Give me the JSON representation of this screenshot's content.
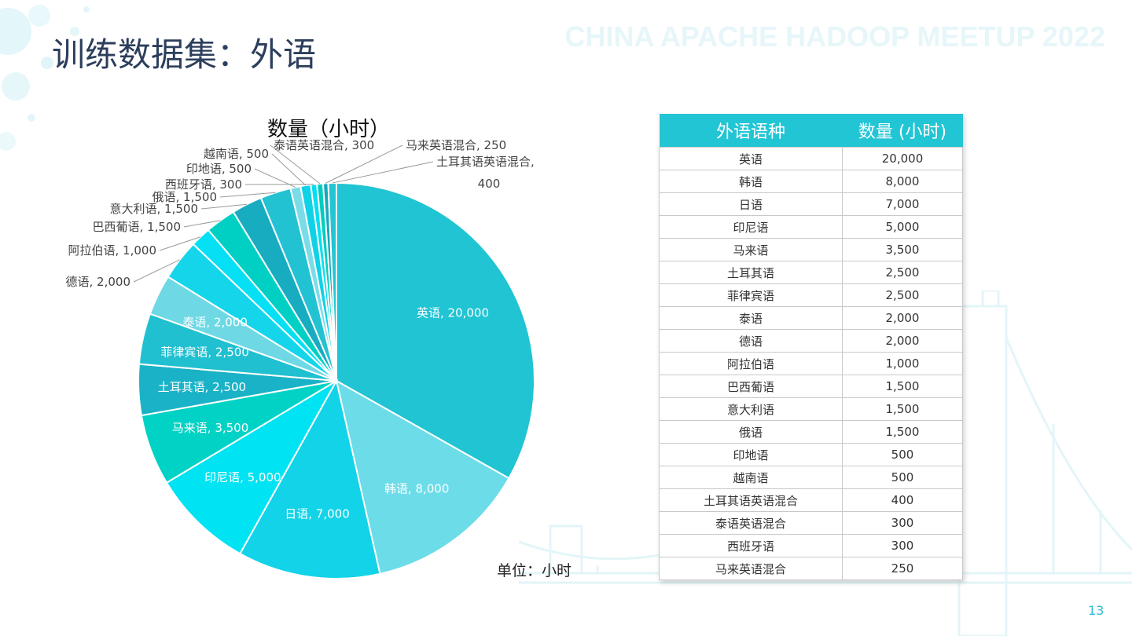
{
  "page": {
    "title": "训练数据集：外语",
    "watermark": "CHINA APACHE HADOOP MEETUP 2022",
    "page_number": "13",
    "unit_note": "单位：小时"
  },
  "colors": {
    "accent": "#22c5d4",
    "title_text": "#2c3e5c",
    "slice_borders": "#ffffff"
  },
  "chart_data": {
    "type": "pie",
    "title": "数量（小时）",
    "start_angle_deg": 0,
    "direction": "clockwise",
    "slices": [
      {
        "label": "英语",
        "value": 20000,
        "display": "英语, 20,000",
        "color": "#20c4d3"
      },
      {
        "label": "韩语",
        "value": 8000,
        "display": "韩语, 8,000",
        "color": "#6cdce8"
      },
      {
        "label": "日语",
        "value": 7000,
        "display": "日语, 7,000",
        "color": "#12d3e8"
      },
      {
        "label": "印尼语",
        "value": 5000,
        "display": "印尼语, 5,000",
        "color": "#00e3f3"
      },
      {
        "label": "马来语",
        "value": 3500,
        "display": "马来语, 3,500",
        "color": "#00d2c5"
      },
      {
        "label": "土耳其语",
        "value": 2500,
        "display": "土耳其语, 2,500",
        "color": "#1ab2c6"
      },
      {
        "label": "菲律宾语",
        "value": 2500,
        "display": "菲律宾语, 2,500",
        "color": "#20c0d0"
      },
      {
        "label": "泰语",
        "value": 2000,
        "display": "泰语, 2,000",
        "color": "#6ed9e5"
      },
      {
        "label": "德语",
        "value": 2000,
        "display": "德语, 2,000",
        "color": "#15d5ea"
      },
      {
        "label": "阿拉伯语",
        "value": 1000,
        "display": "阿拉伯语, 1,000",
        "color": "#05e0f4"
      },
      {
        "label": "巴西葡语",
        "value": 1500,
        "display": "巴西葡语, 1,500",
        "color": "#00d0c4"
      },
      {
        "label": "意大利语",
        "value": 1500,
        "display": "意大利语, 1,500",
        "color": "#17acc0"
      },
      {
        "label": "俄语",
        "value": 1500,
        "display": "俄语, 1,500",
        "color": "#22c2d2"
      },
      {
        "label": "印地语",
        "value": 500,
        "display": "印地语, 500",
        "color": "#7bdce8"
      },
      {
        "label": "越南语",
        "value": 500,
        "display": "越南语, 500",
        "color": "#10d2e6"
      },
      {
        "label": "西班牙语",
        "value": 300,
        "display": "西班牙语, 300",
        "color": "#04def2"
      },
      {
        "label": "泰语英语混合",
        "value": 300,
        "display": "泰语英语混合, 300",
        "color": "#00cdbf"
      },
      {
        "label": "马来英语混合",
        "value": 250,
        "display": "马来英语混合, 250",
        "color": "#18a8bc"
      },
      {
        "label": "土耳其语英语混合",
        "value": 400,
        "display": "土耳其语英语混合, 400",
        "color": "#22c5d4"
      }
    ]
  },
  "table": {
    "headers": [
      "外语语种",
      "数量 (小时)"
    ],
    "rows": [
      [
        "英语",
        "20,000"
      ],
      [
        "韩语",
        "8,000"
      ],
      [
        "日语",
        "7,000"
      ],
      [
        "印尼语",
        "5,000"
      ],
      [
        "马来语",
        "3,500"
      ],
      [
        "土耳其语",
        "2,500"
      ],
      [
        "菲律宾语",
        "2,500"
      ],
      [
        "泰语",
        "2,000"
      ],
      [
        "德语",
        "2,000"
      ],
      [
        "阿拉伯语",
        "1,000"
      ],
      [
        "巴西葡语",
        "1,500"
      ],
      [
        "意大利语",
        "1,500"
      ],
      [
        "俄语",
        "1,500"
      ],
      [
        "印地语",
        "500"
      ],
      [
        "越南语",
        "500"
      ],
      [
        "土耳其语英语混合",
        "400"
      ],
      [
        "泰语英语混合",
        "300"
      ],
      [
        "西班牙语",
        "300"
      ],
      [
        "马来英语混合",
        "250"
      ]
    ]
  }
}
